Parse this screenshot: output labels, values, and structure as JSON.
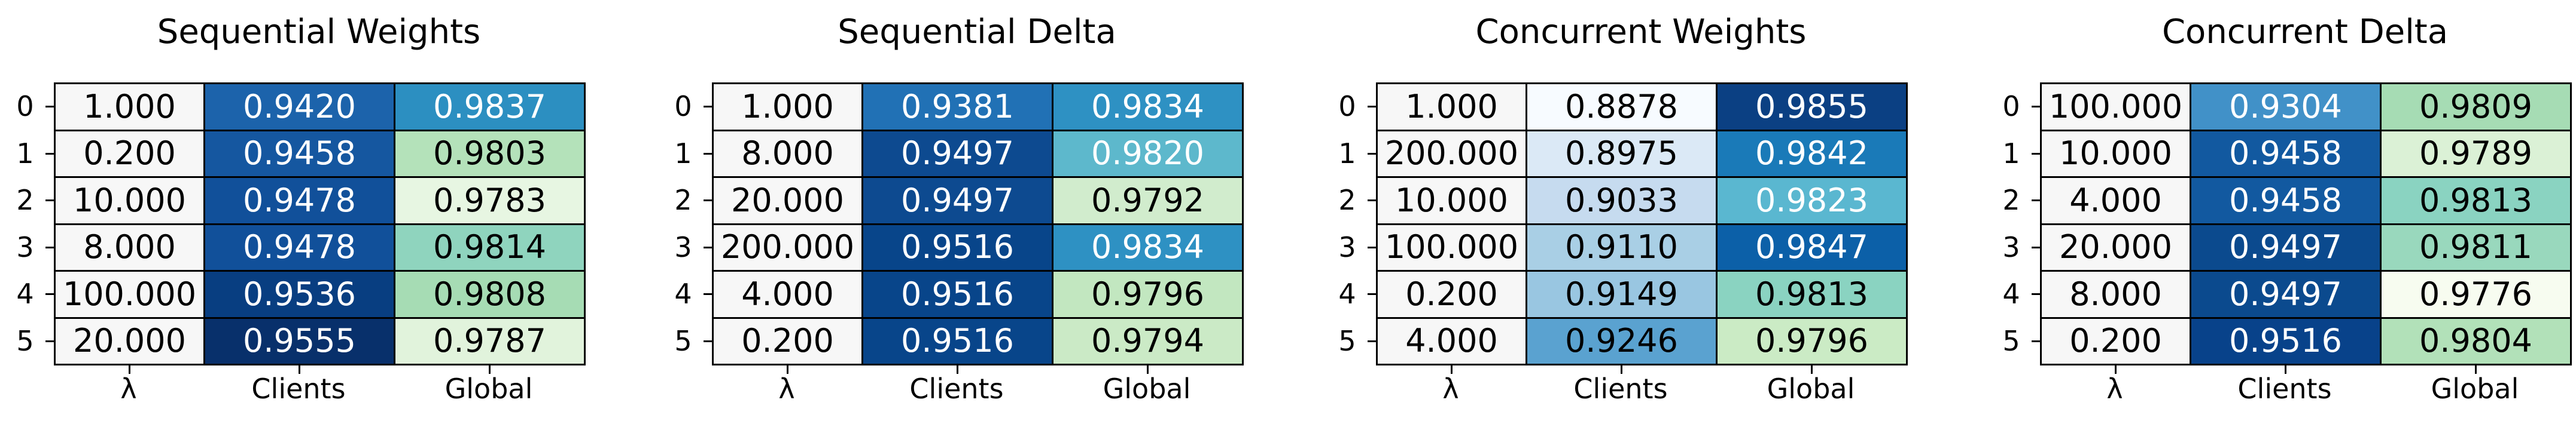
{
  "chart_data": [
    {
      "type": "table",
      "title": "Sequential Weights",
      "row_labels": [
        "0",
        "1",
        "2",
        "3",
        "4",
        "5"
      ],
      "columns": [
        "λ",
        "Clients",
        "Global"
      ],
      "cells": [
        [
          "1.000",
          "0.9420",
          "0.9837"
        ],
        [
          "0.200",
          "0.9458",
          "0.9803"
        ],
        [
          "10.000",
          "0.9478",
          "0.9783"
        ],
        [
          "8.000",
          "0.9478",
          "0.9814"
        ],
        [
          "100.000",
          "0.9536",
          "0.9808"
        ],
        [
          "20.000",
          "0.9555",
          "0.9787"
        ]
      ],
      "colors": [
        [
          "#f7f7f7",
          "#1c63ab",
          "#2c8fc1"
        ],
        [
          "#f7f7f7",
          "#1557a0",
          "#b4e2ba"
        ],
        [
          "#f7f7f7",
          "#11509a",
          "#e7f6e2"
        ],
        [
          "#f7f7f7",
          "#11509a",
          "#8fd4be"
        ],
        [
          "#f7f7f7",
          "#083e81",
          "#a6dcb4"
        ],
        [
          "#f7f7f7",
          "#08306b",
          "#e1f3dc"
        ]
      ],
      "text_colors": [
        [
          "#000000",
          "#ffffff",
          "#ffffff"
        ],
        [
          "#000000",
          "#ffffff",
          "#000000"
        ],
        [
          "#000000",
          "#ffffff",
          "#000000"
        ],
        [
          "#000000",
          "#ffffff",
          "#000000"
        ],
        [
          "#000000",
          "#ffffff",
          "#000000"
        ],
        [
          "#000000",
          "#ffffff",
          "#000000"
        ]
      ]
    },
    {
      "type": "table",
      "title": "Sequential Delta",
      "row_labels": [
        "0",
        "1",
        "2",
        "3",
        "4",
        "5"
      ],
      "columns": [
        "λ",
        "Clients",
        "Global"
      ],
      "cells": [
        [
          "1.000",
          "0.9381",
          "0.9834"
        ],
        [
          "8.000",
          "0.9497",
          "0.9820"
        ],
        [
          "20.000",
          "0.9497",
          "0.9792"
        ],
        [
          "200.000",
          "0.9516",
          "0.9834"
        ],
        [
          "4.000",
          "0.9516",
          "0.9796"
        ],
        [
          "0.200",
          "0.9516",
          "0.9794"
        ]
      ],
      "colors": [
        [
          "#f7f7f7",
          "#2171b5",
          "#2e91c3"
        ],
        [
          "#f7f7f7",
          "#0d4a90",
          "#5db8cc"
        ],
        [
          "#f7f7f7",
          "#0d4a90",
          "#d1eccd"
        ],
        [
          "#f7f7f7",
          "#08458a",
          "#2e91c3"
        ],
        [
          "#f7f7f7",
          "#08458a",
          "#c2e7c0"
        ],
        [
          "#f7f7f7",
          "#08458a",
          "#cbeac6"
        ]
      ],
      "text_colors": [
        [
          "#000000",
          "#ffffff",
          "#ffffff"
        ],
        [
          "#000000",
          "#ffffff",
          "#ffffff"
        ],
        [
          "#000000",
          "#ffffff",
          "#000000"
        ],
        [
          "#000000",
          "#ffffff",
          "#ffffff"
        ],
        [
          "#000000",
          "#ffffff",
          "#000000"
        ],
        [
          "#000000",
          "#ffffff",
          "#000000"
        ]
      ]
    },
    {
      "type": "table",
      "title": "Concurrent Weights",
      "row_labels": [
        "0",
        "1",
        "2",
        "3",
        "4",
        "5"
      ],
      "columns": [
        "λ",
        "Clients",
        "Global"
      ],
      "cells": [
        [
          "1.000",
          "0.8878",
          "0.9855"
        ],
        [
          "200.000",
          "0.8975",
          "0.9842"
        ],
        [
          "10.000",
          "0.9033",
          "0.9823"
        ],
        [
          "100.000",
          "0.9110",
          "0.9847"
        ],
        [
          "0.200",
          "0.9149",
          "0.9813"
        ],
        [
          "4.000",
          "0.9246",
          "0.9796"
        ]
      ],
      "colors": [
        [
          "#f7f7f7",
          "#f7fbff",
          "#0b4083"
        ],
        [
          "#f7f7f7",
          "#dbe9f6",
          "#1a7ab8"
        ],
        [
          "#f7f7f7",
          "#c6dbef",
          "#5ab7d0"
        ],
        [
          "#f7f7f7",
          "#a9cfe5",
          "#0c60a8"
        ],
        [
          "#f7f7f7",
          "#99c6e1",
          "#8ad3c1"
        ],
        [
          "#f7f7f7",
          "#5aa2d0",
          "#cbebc5"
        ]
      ],
      "text_colors": [
        [
          "#000000",
          "#000000",
          "#ffffff"
        ],
        [
          "#000000",
          "#000000",
          "#ffffff"
        ],
        [
          "#000000",
          "#000000",
          "#ffffff"
        ],
        [
          "#000000",
          "#000000",
          "#ffffff"
        ],
        [
          "#000000",
          "#000000",
          "#000000"
        ],
        [
          "#000000",
          "#000000",
          "#000000"
        ]
      ]
    },
    {
      "type": "table",
      "title": "Concurrent Delta",
      "row_labels": [
        "0",
        "1",
        "2",
        "3",
        "4",
        "5"
      ],
      "columns": [
        "λ",
        "Clients",
        "Global"
      ],
      "cells": [
        [
          "100.000",
          "0.9304",
          "0.9809"
        ],
        [
          "10.000",
          "0.9458",
          "0.9789"
        ],
        [
          "4.000",
          "0.9458",
          "0.9813"
        ],
        [
          "20.000",
          "0.9497",
          "0.9811"
        ],
        [
          "8.000",
          "0.9497",
          "0.9776"
        ],
        [
          "0.200",
          "0.9516",
          "0.9804"
        ]
      ],
      "colors": [
        [
          "#f7f7f7",
          "#4191c8",
          "#a6dcb4"
        ],
        [
          "#f7f7f7",
          "#1259a0",
          "#dbf1d6"
        ],
        [
          "#f7f7f7",
          "#1259a0",
          "#8ad3c1"
        ],
        [
          "#f7f7f7",
          "#0b4a8e",
          "#99d8bd"
        ],
        [
          "#f7f7f7",
          "#0b4a8e",
          "#f7fcf0"
        ],
        [
          "#f7f7f7",
          "#08428a",
          "#b2e1b9"
        ]
      ],
      "text_colors": [
        [
          "#000000",
          "#ffffff",
          "#000000"
        ],
        [
          "#000000",
          "#ffffff",
          "#000000"
        ],
        [
          "#000000",
          "#ffffff",
          "#000000"
        ],
        [
          "#000000",
          "#ffffff",
          "#000000"
        ],
        [
          "#000000",
          "#ffffff",
          "#000000"
        ],
        [
          "#000000",
          "#ffffff",
          "#000000"
        ]
      ]
    }
  ]
}
